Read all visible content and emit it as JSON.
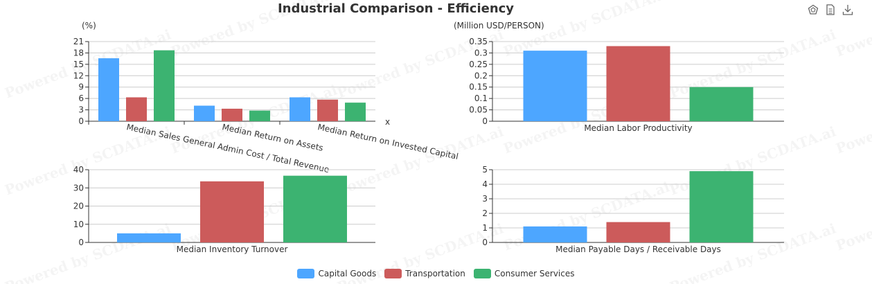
{
  "title": "Industrial Comparison - Efficiency",
  "toolbox": [
    {
      "icon": "pentagon-icon"
    },
    {
      "icon": "document-icon"
    },
    {
      "icon": "download-icon"
    }
  ],
  "watermark": "Powered by SCDATA.ai",
  "colors": [
    "#4da6ff",
    "#cc5b5b",
    "#3cb371"
  ],
  "legend": [
    "Capital Goods",
    "Transportation",
    "Consumer Services"
  ],
  "chart_data": [
    {
      "type": "bar",
      "ylabel": "(%)",
      "xlabel": "x",
      "categories": [
        "Median Sales General Admin Cost / Total Revenue",
        "Median Return on Assets",
        "Median Return on Invested Capital"
      ],
      "yticks": [
        "0",
        "3",
        "6",
        "9",
        "12",
        "15",
        "18",
        "21"
      ],
      "ylim": [
        0,
        21
      ],
      "series": [
        {
          "name": "Capital Goods",
          "values": [
            16.6,
            4.1,
            6.3
          ]
        },
        {
          "name": "Transportation",
          "values": [
            6.3,
            3.3,
            5.7
          ]
        },
        {
          "name": "Consumer Services",
          "values": [
            18.7,
            2.8,
            4.9
          ]
        }
      ]
    },
    {
      "type": "bar",
      "ylabel": "(Million USD/PERSON)",
      "categories": [
        "Median Labor Productivity"
      ],
      "yticks": [
        "0",
        "0.05",
        "0.1",
        "0.15",
        "0.2",
        "0.25",
        "0.3",
        "0.35"
      ],
      "ylim": [
        0,
        0.35
      ],
      "series": [
        {
          "name": "Capital Goods",
          "values": [
            0.31
          ]
        },
        {
          "name": "Transportation",
          "values": [
            0.33
          ]
        },
        {
          "name": "Consumer Services",
          "values": [
            0.15
          ]
        }
      ]
    },
    {
      "type": "bar",
      "ylabel": "",
      "categories": [
        "Median Inventory Turnover"
      ],
      "yticks": [
        "0",
        "10",
        "20",
        "30",
        "40"
      ],
      "ylim": [
        0,
        40
      ],
      "series": [
        {
          "name": "Capital Goods",
          "values": [
            5.0
          ]
        },
        {
          "name": "Transportation",
          "values": [
            33.6
          ]
        },
        {
          "name": "Consumer Services",
          "values": [
            36.7
          ]
        }
      ]
    },
    {
      "type": "bar",
      "ylabel": "",
      "categories": [
        "Median Payable Days / Receivable Days"
      ],
      "yticks": [
        "0",
        "1",
        "2",
        "3",
        "4",
        "5"
      ],
      "ylim": [
        0,
        5
      ],
      "series": [
        {
          "name": "Capital Goods",
          "values": [
            1.1
          ]
        },
        {
          "name": "Transportation",
          "values": [
            1.4
          ]
        },
        {
          "name": "Consumer Services",
          "values": [
            4.9
          ]
        }
      ]
    }
  ]
}
